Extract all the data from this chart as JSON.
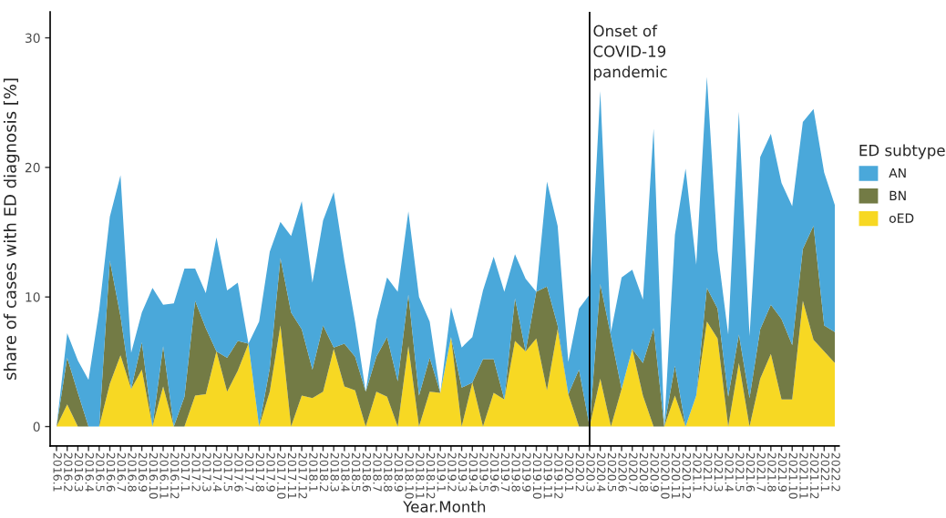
{
  "chart_data": {
    "type": "area",
    "stacked": true,
    "xlabel": "Year.Month",
    "ylabel": "share of cases with ED diagnosis [%]",
    "legend_title": "ED subtype",
    "legend": "right",
    "categories": [
      "2016.1",
      "2016.2",
      "2016.3",
      "2016.4",
      "2016.5",
      "2016.6",
      "2016.7",
      "2016.8",
      "2016.9",
      "2016.10",
      "2016.11",
      "2016.12",
      "2017.1",
      "2017.2",
      "2017.3",
      "2017.4",
      "2017.5",
      "2017.6",
      "2017.7",
      "2017.8",
      "2017.9",
      "2017.10",
      "2017.11",
      "2017.12",
      "2018.1",
      "2018.2",
      "2018.3",
      "2018.4",
      "2018.5",
      "2018.6",
      "2018.7",
      "2018.8",
      "2018.9",
      "2018.10",
      "2018.11",
      "2018.12",
      "2019.1",
      "2019.2",
      "2019.3",
      "2019.4",
      "2019.5",
      "2019.6",
      "2019.7",
      "2019.8",
      "2019.9",
      "2019.10",
      "2019.11",
      "2019.12",
      "2020.1",
      "2020.2",
      "2020.3",
      "2020.4",
      "2020.5",
      "2020.6",
      "2020.7",
      "2020.8",
      "2020.9",
      "2020.10",
      "2020.11",
      "2020.12",
      "2021.1",
      "2021.2",
      "2021.3",
      "2021.4",
      "2021.5",
      "2021.6",
      "2021.7",
      "2021.8",
      "2021.9",
      "2021.10",
      "2021.11",
      "2021.12",
      "2022.1",
      "2022.2"
    ],
    "series": [
      {
        "name": "oED",
        "color": "#f7d823",
        "values": [
          0,
          1.7,
          0,
          0,
          0,
          3.3,
          5.5,
          2.9,
          4.4,
          0,
          3.1,
          0,
          0,
          2.4,
          2.5,
          5.8,
          2.7,
          4.3,
          6.4,
          0,
          2.7,
          7.8,
          0,
          2.4,
          2.2,
          2.7,
          6.0,
          3.1,
          2.8,
          0,
          2.7,
          2.3,
          0,
          6.2,
          0,
          2.7,
          2.6,
          6.9,
          0,
          3.4,
          0,
          2.6,
          2.1,
          6.6,
          5.8,
          6.8,
          2.8,
          7.5,
          2.5,
          0,
          0,
          3.7,
          0,
          2.9,
          6.0,
          2.4,
          0,
          0,
          2.4,
          0,
          2.4,
          8.1,
          6.8,
          0,
          4.9,
          0,
          3.7,
          5.6,
          2.1,
          2.1,
          9.7,
          6.7,
          5.8,
          4.9
        ]
      },
      {
        "name": "BN",
        "color": "#737b45",
        "values": [
          0,
          3.6,
          2.6,
          0,
          0,
          9.5,
          3.0,
          0,
          2.1,
          0,
          3.1,
          0,
          2.3,
          7.3,
          5.1,
          0,
          2.6,
          2.3,
          0,
          0,
          1.8,
          5.2,
          8.8,
          5.1,
          2.2,
          5.1,
          0.1,
          3.3,
          2.6,
          2.7,
          2.7,
          4.6,
          3.5,
          4.0,
          2.4,
          2.6,
          0,
          0,
          3.0,
          0,
          5.2,
          2.6,
          0,
          3.3,
          0,
          3.6,
          8.0,
          0.3,
          0,
          4.4,
          0,
          7.3,
          7.0,
          0,
          0,
          2.5,
          7.6,
          0,
          2.3,
          0,
          0,
          2.6,
          2.3,
          2.3,
          2.2,
          2.2,
          3.8,
          3.8,
          6.2,
          4.2,
          4.0,
          8.8,
          2.0,
          2.4
        ]
      },
      {
        "name": "AN",
        "color": "#4aa8da",
        "values": [
          0,
          1.9,
          2.5,
          3.6,
          9.0,
          3.4,
          10.9,
          2.8,
          2.3,
          10.7,
          3.2,
          9.5,
          9.9,
          2.5,
          2.7,
          8.8,
          5.2,
          4.5,
          0,
          8.1,
          9.0,
          2.8,
          5.9,
          9.9,
          6.7,
          8.1,
          12.0,
          6.4,
          2.7,
          0,
          2.8,
          4.6,
          6.9,
          6.4,
          7.6,
          2.8,
          0,
          2.3,
          3.1,
          3.5,
          5.3,
          7.9,
          8.3,
          3.4,
          5.6,
          0,
          8.1,
          7.7,
          2.5,
          4.7,
          10.2,
          14.9,
          0.3,
          8.6,
          6.1,
          4.9,
          15.4,
          0,
          10.1,
          19.9,
          10.1,
          16.3,
          4.5,
          4.8,
          17.2,
          4.8,
          13.3,
          13.2,
          10.5,
          10.7,
          9.8,
          9.0,
          11.8,
          9.8
        ]
      }
    ],
    "ylim": [
      -1.5,
      32
    ],
    "yticks": [
      0,
      10,
      20,
      30
    ],
    "grid": false,
    "ref_lines": [
      {
        "axis": "x",
        "value": "2020.3",
        "label": "Onset of\nCOVID-19\npandemic",
        "color": "#000000"
      }
    ]
  }
}
